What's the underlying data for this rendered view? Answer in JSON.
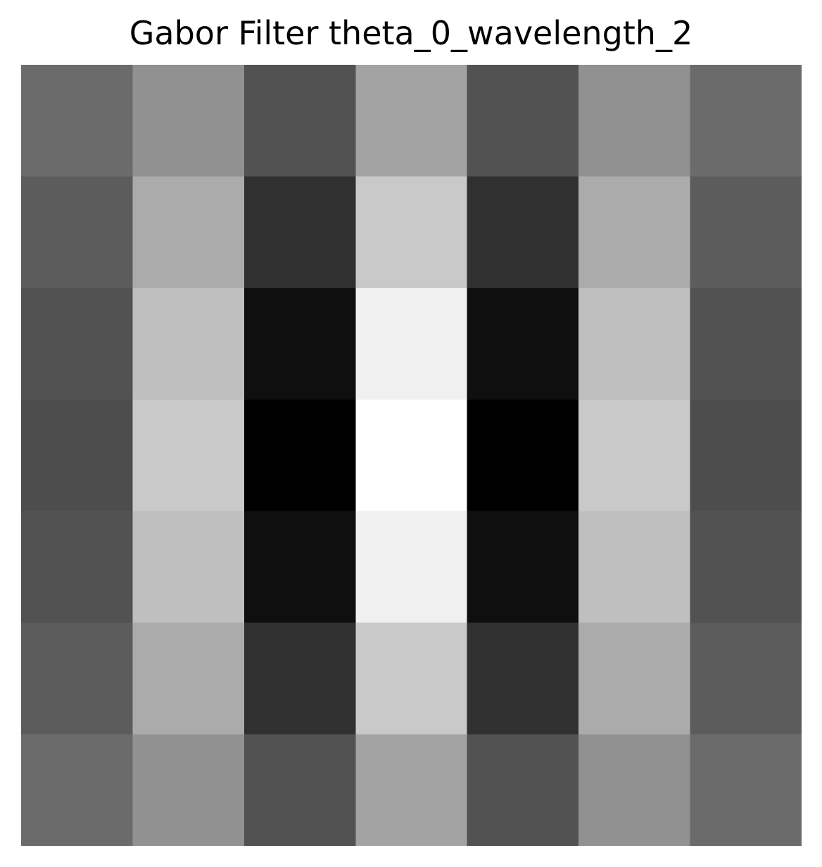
{
  "chart_data": {
    "type": "heatmap",
    "title": "Gabor Filter theta_0_wavelength_2",
    "colormap": "gray",
    "axes_visible": false,
    "rows": 7,
    "cols": 7,
    "values": [
      [
        0.42,
        0.57,
        0.32,
        0.64,
        0.32,
        0.57,
        0.42
      ],
      [
        0.36,
        0.67,
        0.19,
        0.79,
        0.19,
        0.67,
        0.36
      ],
      [
        0.32,
        0.75,
        0.06,
        0.94,
        0.06,
        0.75,
        0.32
      ],
      [
        0.3,
        0.79,
        0.0,
        1.0,
        0.0,
        0.79,
        0.3
      ],
      [
        0.32,
        0.75,
        0.06,
        0.94,
        0.06,
        0.75,
        0.32
      ],
      [
        0.36,
        0.67,
        0.19,
        0.79,
        0.19,
        0.67,
        0.36
      ],
      [
        0.42,
        0.57,
        0.32,
        0.64,
        0.32,
        0.57,
        0.42
      ]
    ]
  }
}
